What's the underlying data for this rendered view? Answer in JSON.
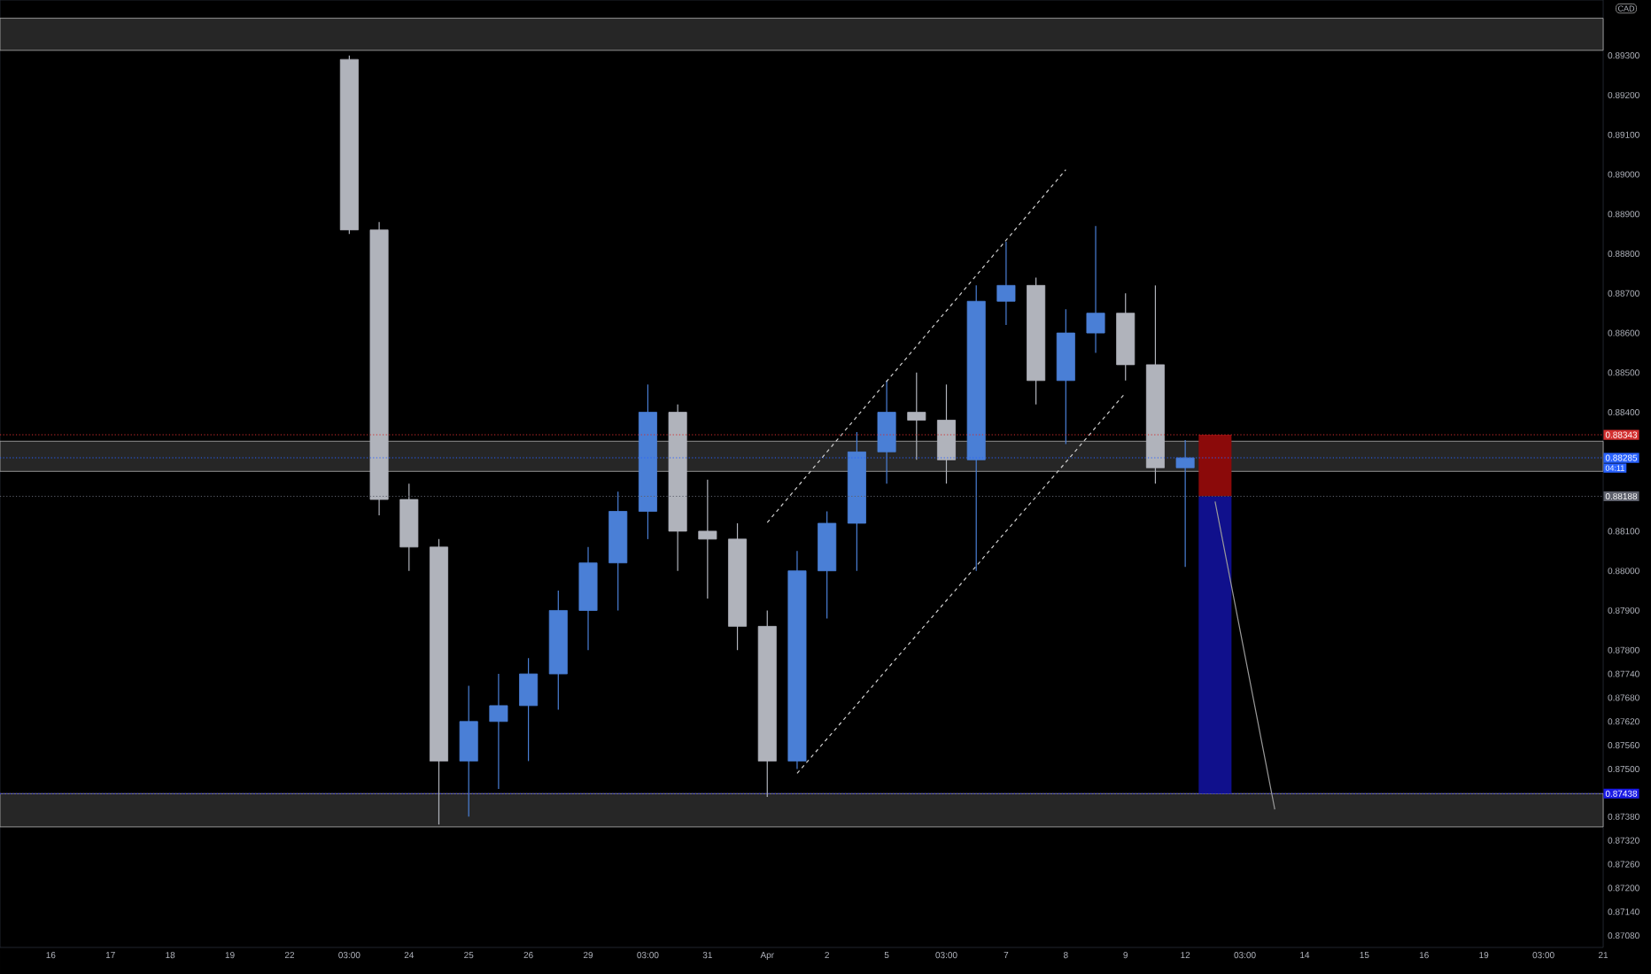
{
  "chart_data": {
    "type": "candlestick",
    "ylabel": "CAD",
    "categories": [
      "16",
      null,
      "17",
      null,
      "18",
      null,
      "19",
      null,
      "22",
      null,
      "03:00",
      null,
      "24",
      null,
      "25",
      null,
      "26",
      null,
      "29",
      null,
      "03:00",
      null,
      "31",
      null,
      "Apr",
      null,
      "2",
      null,
      "5",
      null,
      "03:00",
      null,
      "7",
      null,
      "8",
      null,
      "9",
      null,
      "12",
      null,
      "03:00",
      null,
      "14",
      null,
      "15",
      null,
      "16",
      null,
      "19",
      null,
      "03:00",
      null,
      "21",
      null
    ],
    "ylim": [
      0.8705,
      0.8944
    ],
    "yticks": [
      {
        "value": 0.893,
        "label": "0.89300"
      },
      {
        "value": 0.892,
        "label": "0.89200"
      },
      {
        "value": 0.891,
        "label": "0.89100"
      },
      {
        "value": 0.89,
        "label": "0.89000"
      },
      {
        "value": 0.889,
        "label": "0.88900"
      },
      {
        "value": 0.888,
        "label": "0.88800"
      },
      {
        "value": 0.887,
        "label": "0.88700"
      },
      {
        "value": 0.886,
        "label": "0.88600"
      },
      {
        "value": 0.885,
        "label": "0.88500"
      },
      {
        "value": 0.884,
        "label": "0.88400"
      },
      {
        "value": 0.881,
        "label": "0.88100"
      },
      {
        "value": 0.88,
        "label": "0.88000"
      },
      {
        "value": 0.879,
        "label": "0.87900"
      },
      {
        "value": 0.878,
        "label": "0.87800"
      },
      {
        "value": 0.8774,
        "label": "0.87740"
      },
      {
        "value": 0.8768,
        "label": "0.87680"
      },
      {
        "value": 0.8762,
        "label": "0.87620"
      },
      {
        "value": 0.8756,
        "label": "0.87560"
      },
      {
        "value": 0.875,
        "label": "0.87500"
      },
      {
        "value": 0.8738,
        "label": "0.87380"
      },
      {
        "value": 0.8732,
        "label": "0.87320"
      },
      {
        "value": 0.8726,
        "label": "0.87260"
      },
      {
        "value": 0.872,
        "label": "0.87200"
      },
      {
        "value": 0.8714,
        "label": "0.87140"
      },
      {
        "value": 0.8708,
        "label": "0.87080"
      }
    ],
    "bands": [
      {
        "axis": "y",
        "from": 0.89313,
        "to": 0.89394,
        "color": "#262626"
      },
      {
        "axis": "y",
        "from": 0.88251,
        "to": 0.88327,
        "color": "#262626"
      },
      {
        "axis": "y",
        "from": 0.87354,
        "to": 0.87438,
        "color": "#262626"
      }
    ],
    "ref_lines": [
      {
        "axis": "y",
        "value": 0.88343,
        "label": "0.88343",
        "color": "#d32f2f",
        "line_style": "dotted"
      },
      {
        "axis": "y",
        "value": 0.88285,
        "label": "0.88285",
        "color": "#2962ff",
        "line_style": "dotted"
      },
      {
        "axis": "y",
        "value": 0.88188,
        "label": "0.88188",
        "color": "#5d606b",
        "line_style": "dotted"
      },
      {
        "axis": "y",
        "value": 0.87438,
        "label": "0.87438",
        "color": "#1a1ae6",
        "line_style": "dotted"
      }
    ],
    "annotations": [
      "04:11"
    ],
    "series": [
      {
        "type": "candlestick",
        "ohlc": [
          null,
          null,
          null,
          null,
          null,
          null,
          null,
          null,
          null,
          null,
          [
            0.8929,
            0.893,
            0.8885,
            0.8886
          ],
          [
            0.8886,
            0.8888,
            0.8814,
            0.8818
          ],
          [
            0.8818,
            0.8822,
            0.88,
            0.8806
          ],
          [
            0.8806,
            0.8808,
            0.8736,
            0.8752
          ],
          [
            0.8752,
            0.8771,
            0.8738,
            0.8762
          ],
          [
            0.8762,
            0.8774,
            0.8745,
            0.8766
          ],
          [
            0.8766,
            0.8778,
            0.8752,
            0.8774
          ],
          [
            0.8774,
            0.8795,
            0.8765,
            0.879
          ],
          [
            0.879,
            0.8806,
            0.878,
            0.8802
          ],
          [
            0.8802,
            0.882,
            0.879,
            0.8815
          ],
          [
            0.8815,
            0.8847,
            0.8808,
            0.884
          ],
          [
            0.884,
            0.8842,
            0.88,
            0.881
          ],
          [
            0.881,
            0.8823,
            0.8793,
            0.8808
          ],
          [
            0.8808,
            0.8812,
            0.878,
            0.8786
          ],
          [
            0.8786,
            0.879,
            0.8743,
            0.8752
          ],
          [
            0.8752,
            0.8805,
            0.875,
            0.88
          ],
          [
            0.88,
            0.8815,
            0.8788,
            0.8812
          ],
          [
            0.8812,
            0.8835,
            0.88,
            0.883
          ],
          [
            0.883,
            0.8848,
            0.8822,
            0.884
          ],
          [
            0.884,
            0.885,
            0.8828,
            0.8838
          ],
          [
            0.8838,
            0.8847,
            0.8822,
            0.8828
          ],
          [
            0.8828,
            0.8872,
            0.88,
            0.8868
          ],
          [
            0.8868,
            0.8883,
            0.8862,
            0.8872
          ],
          [
            0.8872,
            0.8874,
            0.8842,
            0.8848
          ],
          [
            0.8848,
            0.8866,
            0.8832,
            0.886
          ],
          [
            0.886,
            0.8887,
            0.8855,
            0.8865
          ],
          [
            0.8865,
            0.887,
            0.8848,
            0.8852
          ],
          [
            0.8852,
            0.8872,
            0.8822,
            0.8826
          ],
          [
            0.8826,
            0.8833,
            0.8801,
            0.88285
          ],
          null,
          null,
          null,
          null,
          null,
          null,
          null,
          null,
          null,
          null,
          null,
          null,
          null,
          null,
          null
        ],
        "colors": [
          null,
          null,
          null,
          null,
          null,
          null,
          null,
          null,
          null,
          null,
          "#b0b3bb",
          "#b0b3bb",
          "#b0b3bb",
          "#b0b3bb",
          "#4a7fd6",
          "#4a7fd6",
          "#4a7fd6",
          "#4a7fd6",
          "#4a7fd6",
          "#4a7fd6",
          "#4a7fd6",
          "#b0b3bb",
          "#b0b3bb",
          "#b0b3bb",
          "#b0b3bb",
          "#4a7fd6",
          "#4a7fd6",
          "#4a7fd6",
          "#4a7fd6",
          "#b0b3bb",
          "#b0b3bb",
          "#4a7fd6",
          "#4a7fd6",
          "#b0b3bb",
          "#4a7fd6",
          "#4a7fd6",
          "#b0b3bb",
          "#b0b3bb",
          "#4a7fd6",
          null,
          null,
          null,
          null,
          null,
          null,
          null,
          null,
          null,
          null,
          null,
          null,
          null,
          null,
          null
        ]
      },
      {
        "type": "line",
        "color": "#d0d0d0",
        "line_style": "dashed",
        "values": [
          null,
          null,
          null,
          null,
          null,
          null,
          null,
          null,
          null,
          null,
          null,
          null,
          null,
          null,
          null,
          null,
          null,
          null,
          null,
          null,
          null,
          null,
          null,
          null,
          0.88122,
          0.88211,
          0.883,
          0.88389,
          0.88478,
          0.88567,
          0.88656,
          0.88745,
          0.88834,
          0.88923,
          0.89012,
          null,
          null,
          null,
          null,
          null,
          null,
          null,
          null,
          null,
          null,
          null,
          null,
          null,
          null,
          null,
          null,
          null,
          null,
          null
        ]
      },
      {
        "type": "line",
        "color": "#d0d0d0",
        "line_style": "dashed",
        "values": [
          null,
          null,
          null,
          null,
          null,
          null,
          null,
          null,
          null,
          null,
          null,
          null,
          null,
          null,
          null,
          null,
          null,
          null,
          null,
          null,
          null,
          null,
          null,
          null,
          null,
          0.87489,
          0.87576,
          0.87663,
          0.87751,
          0.87838,
          0.87925,
          0.88012,
          0.881,
          0.88187,
          0.88274,
          0.88362,
          0.88449,
          null,
          null,
          null,
          null,
          null,
          null,
          null,
          null,
          null,
          null,
          null,
          null,
          null,
          null,
          null,
          null,
          null
        ]
      },
      {
        "type": "bar",
        "color": "#8b0a0a",
        "base": [
          null,
          null,
          null,
          null,
          null,
          null,
          null,
          null,
          null,
          null,
          null,
          null,
          null,
          null,
          null,
          null,
          null,
          null,
          null,
          null,
          null,
          null,
          null,
          null,
          null,
          null,
          null,
          null,
          null,
          null,
          null,
          null,
          null,
          null,
          null,
          null,
          null,
          null,
          null,
          0.88188,
          null,
          null,
          null,
          null,
          null,
          null,
          null,
          null,
          null,
          null,
          null,
          null,
          null,
          null
        ],
        "values": [
          null,
          null,
          null,
          null,
          null,
          null,
          null,
          null,
          null,
          null,
          null,
          null,
          null,
          null,
          null,
          null,
          null,
          null,
          null,
          null,
          null,
          null,
          null,
          null,
          null,
          null,
          null,
          null,
          null,
          null,
          null,
          null,
          null,
          null,
          null,
          null,
          null,
          null,
          null,
          0.00155,
          null,
          null,
          null,
          null,
          null,
          null,
          null,
          null,
          null,
          null,
          null,
          null,
          null,
          null
        ]
      },
      {
        "type": "bar",
        "color": "#10108c",
        "base": [
          null,
          null,
          null,
          null,
          null,
          null,
          null,
          null,
          null,
          null,
          null,
          null,
          null,
          null,
          null,
          null,
          null,
          null,
          null,
          null,
          null,
          null,
          null,
          null,
          null,
          null,
          null,
          null,
          null,
          null,
          null,
          null,
          null,
          null,
          null,
          null,
          null,
          null,
          null,
          0.87438,
          null,
          null,
          null,
          null,
          null,
          null,
          null,
          null,
          null,
          null,
          null,
          null,
          null,
          null
        ],
        "values": [
          null,
          null,
          null,
          null,
          null,
          null,
          null,
          null,
          null,
          null,
          null,
          null,
          null,
          null,
          null,
          null,
          null,
          null,
          null,
          null,
          null,
          null,
          null,
          null,
          null,
          null,
          null,
          null,
          null,
          null,
          null,
          null,
          null,
          null,
          null,
          null,
          null,
          null,
          null,
          0.0075,
          null,
          null,
          null,
          null,
          null,
          null,
          null,
          null,
          null,
          null,
          null,
          null,
          null,
          null
        ]
      },
      {
        "type": "line",
        "color": "#9a9a9a",
        "line_style": "solid",
        "values": [
          null,
          null,
          null,
          null,
          null,
          null,
          null,
          null,
          null,
          null,
          null,
          null,
          null,
          null,
          null,
          null,
          null,
          null,
          null,
          null,
          null,
          null,
          null,
          null,
          null,
          null,
          null,
          null,
          null,
          null,
          null,
          null,
          null,
          null,
          null,
          null,
          null,
          null,
          null,
          0.88175,
          0.87787,
          0.87398,
          null,
          null,
          null,
          null,
          null,
          null,
          null,
          null,
          null,
          null,
          null,
          null
        ]
      }
    ]
  }
}
